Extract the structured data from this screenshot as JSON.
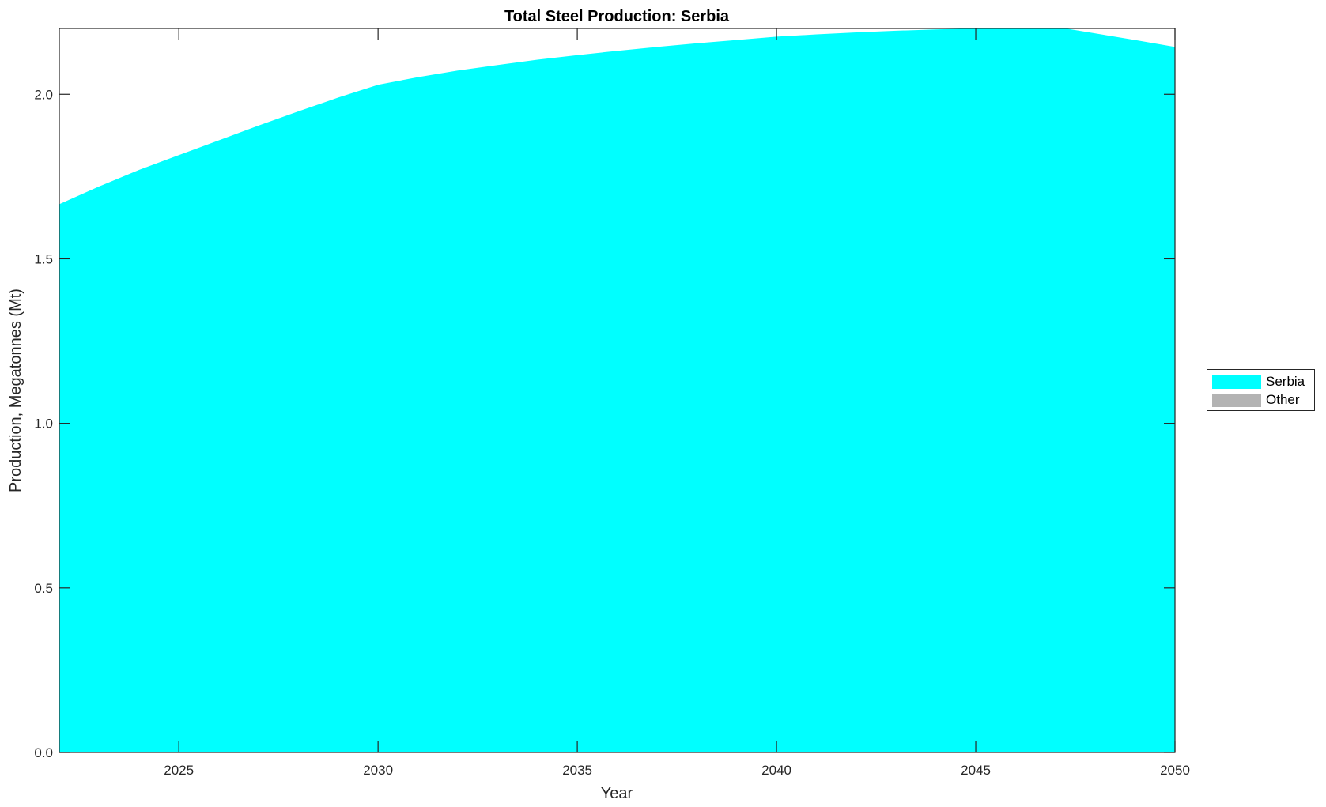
{
  "chart_data": {
    "type": "area",
    "title": "Total Steel Production: Serbia",
    "xlabel": "Year",
    "ylabel": "Production, Megatonnes (Mt)",
    "xlim": [
      2022,
      2050
    ],
    "ylim": [
      0,
      2.2
    ],
    "xticks": [
      2025,
      2030,
      2035,
      2040,
      2045,
      2050
    ],
    "yticks": [
      "0.0",
      "0.5",
      "1.0",
      "1.5",
      "2.0"
    ],
    "grid": false,
    "legend_placement": "right",
    "x": [
      2022,
      2023,
      2024,
      2025,
      2026,
      2027,
      2028,
      2029,
      2030,
      2031,
      2032,
      2033,
      2034,
      2035,
      2036,
      2037,
      2038,
      2039,
      2040,
      2041,
      2042,
      2043,
      2044,
      2045,
      2046,
      2047,
      2048,
      2049,
      2050
    ],
    "series": [
      {
        "name": "Serbia",
        "color": "#00FFFF",
        "values": [
          1.666,
          1.72,
          1.77,
          1.815,
          1.86,
          1.905,
          1.948,
          1.99,
          2.029,
          2.052,
          2.072,
          2.089,
          2.105,
          2.119,
          2.132,
          2.144,
          2.155,
          2.165,
          2.175,
          2.182,
          2.188,
          2.193,
          2.197,
          2.2,
          2.203,
          2.205,
          2.185,
          2.165,
          2.144
        ]
      },
      {
        "name": "Other",
        "color": "#B3B3B3",
        "values": [
          0,
          0,
          0,
          0,
          0,
          0,
          0,
          0,
          0,
          0,
          0,
          0,
          0,
          0,
          0,
          0,
          0,
          0,
          0,
          0,
          0,
          0,
          0,
          0,
          0,
          0,
          0,
          0,
          0
        ]
      }
    ]
  }
}
